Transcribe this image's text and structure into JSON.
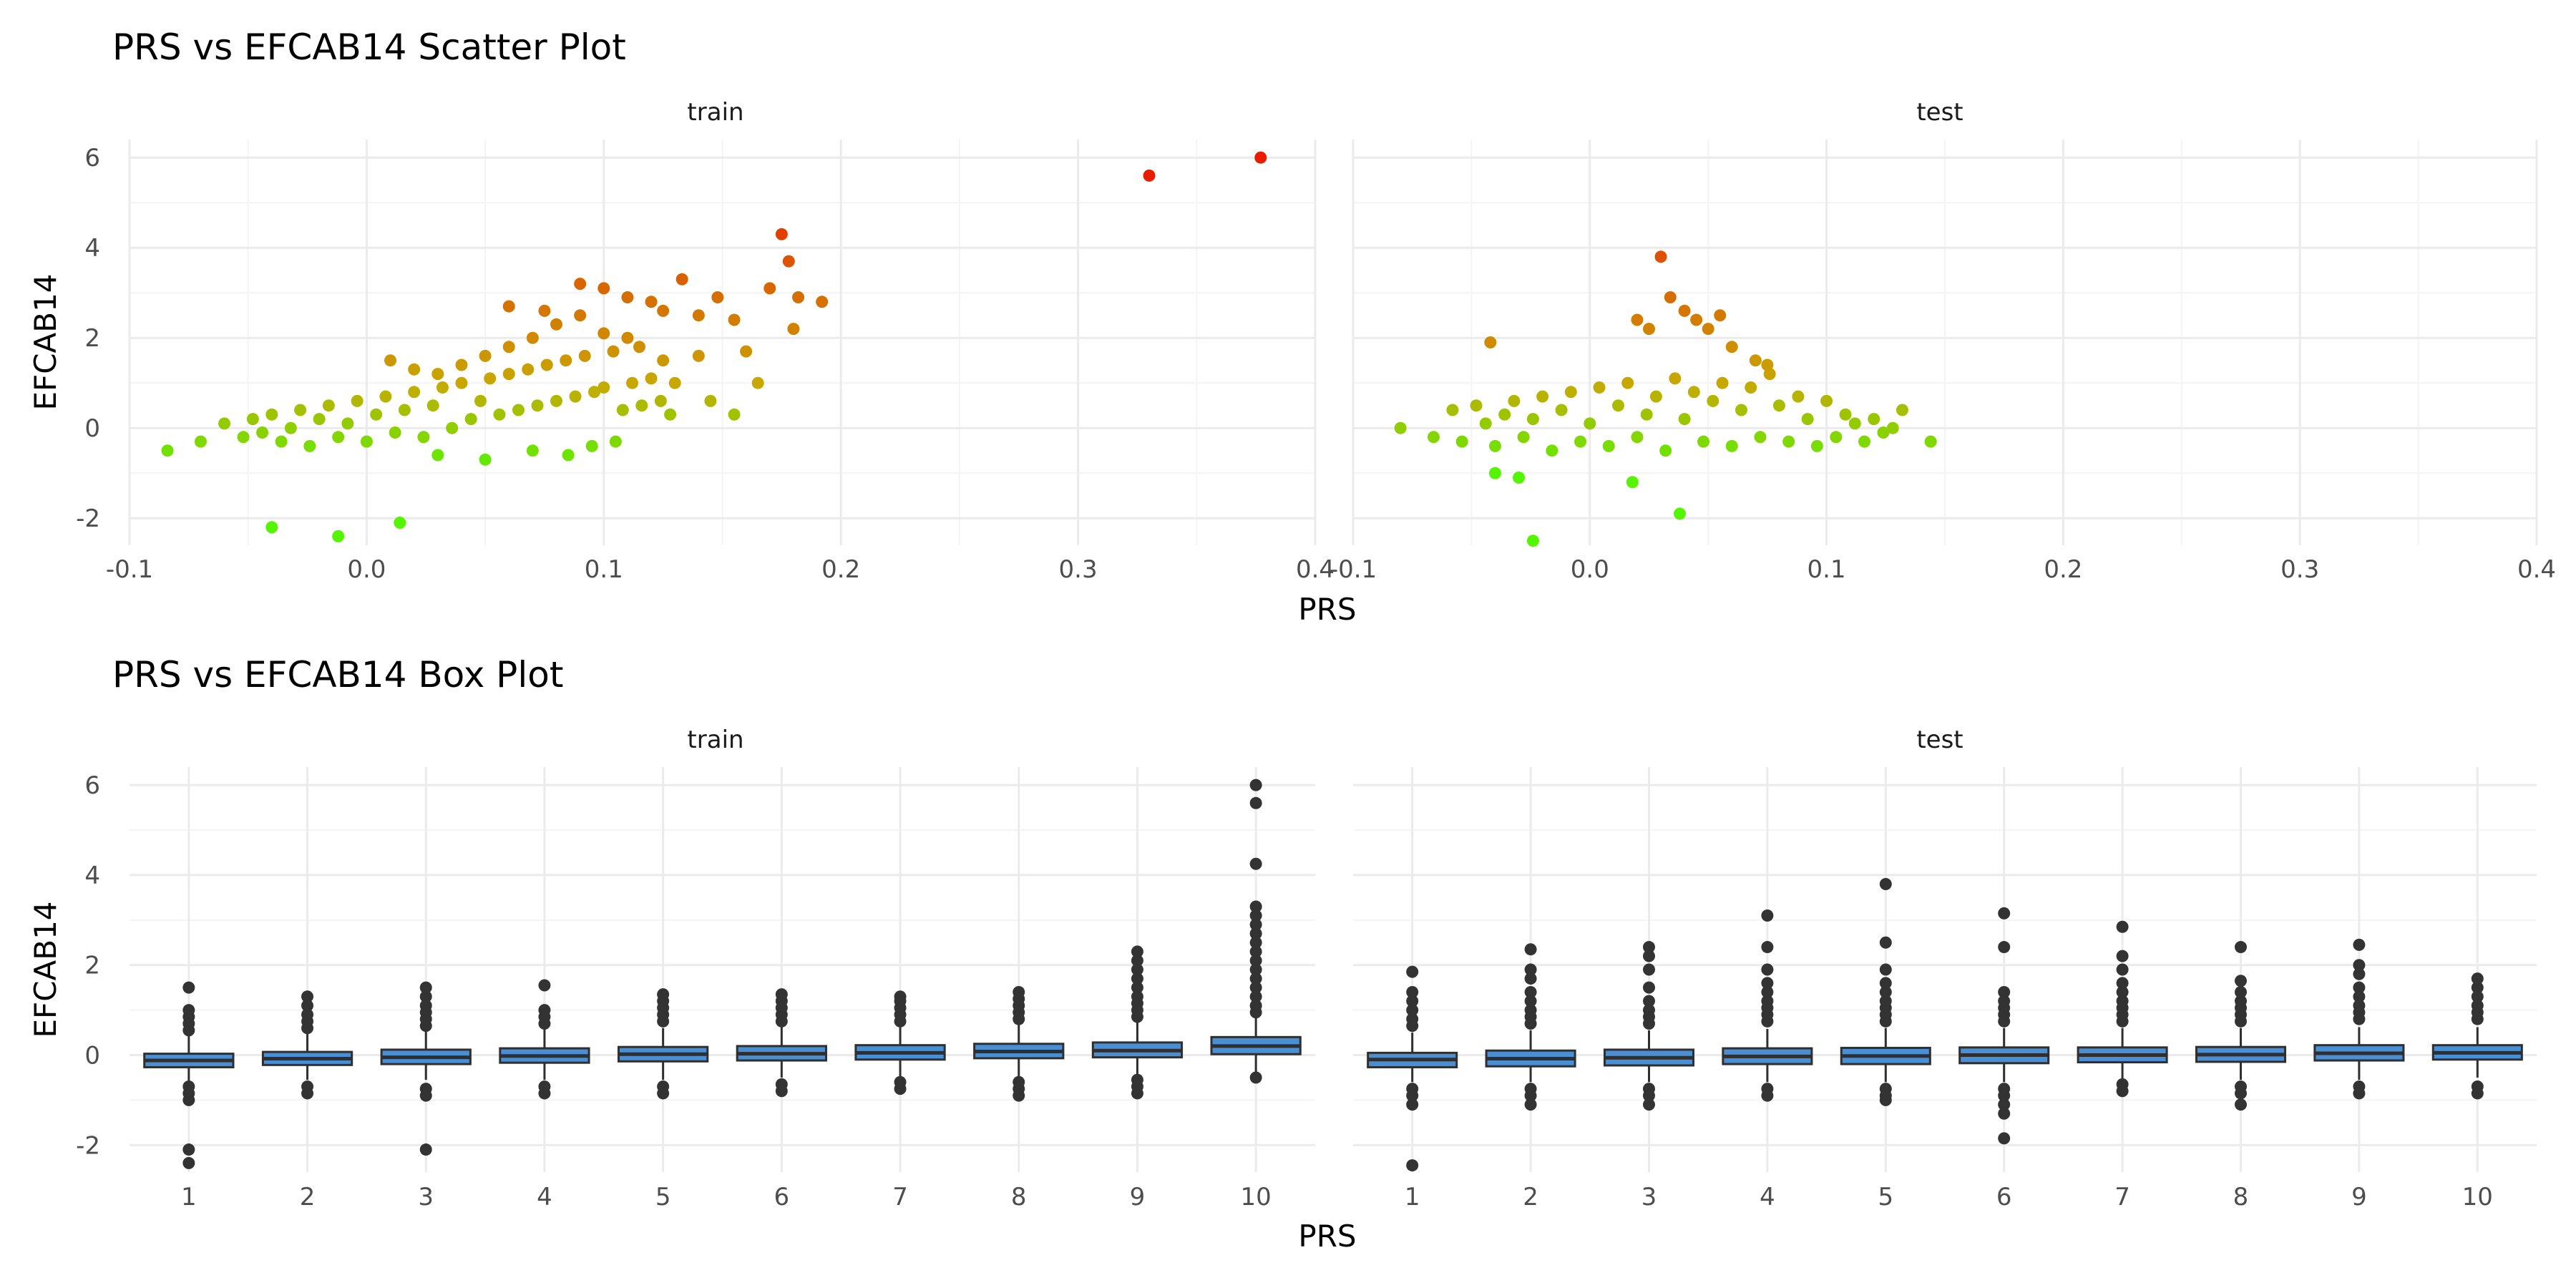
{
  "colors": {
    "background": "#ffffff",
    "grid_major": "#ebebeb",
    "grid_minor": "#f4f4f4",
    "scatter_low": "#55f400",
    "scatter_mid": "#c8a800",
    "scatter_high": "#ea1c00",
    "box_fill": "#4a8fd4",
    "box_line": "#2f2f2f",
    "outlier": "#333333"
  },
  "chart_data": [
    {
      "type": "scatter",
      "title": "PRS vs EFCAB14 Scatter Plot",
      "xlabel": "PRS",
      "ylabel": "EFCAB14",
      "xlim": [
        -0.1,
        0.4
      ],
      "ylim": [
        -2.6,
        6.4
      ],
      "x_ticks": [
        -0.1,
        0.0,
        0.1,
        0.2,
        0.3,
        0.4
      ],
      "x_tick_labels": [
        "-0.1",
        "0.0",
        "0.1",
        "0.2",
        "0.3",
        "0.4"
      ],
      "y_ticks": [
        -2,
        0,
        2,
        4,
        6
      ],
      "y_tick_labels": [
        "-2",
        "0",
        "2",
        "4",
        "6"
      ],
      "color_mapping": "points coloured by EFCAB14 value: green (low) to yellow-brown to red (high)",
      "grid": true,
      "facets": [
        {
          "label": "train",
          "x": [
            -0.084,
            -0.07,
            -0.06,
            -0.052,
            -0.048,
            -0.044,
            -0.04,
            -0.036,
            -0.032,
            -0.028,
            -0.024,
            -0.02,
            -0.016,
            -0.012,
            -0.008,
            -0.004,
            0.0,
            0.004,
            0.008,
            0.012,
            0.016,
            0.02,
            0.024,
            0.028,
            0.032,
            0.036,
            0.04,
            0.044,
            0.048,
            0.052,
            0.056,
            0.06,
            0.064,
            0.068,
            0.072,
            0.076,
            0.08,
            0.084,
            0.088,
            0.092,
            0.096,
            0.1,
            0.104,
            0.108,
            0.112,
            0.116,
            0.12,
            0.124,
            0.128,
            0.01,
            0.02,
            0.03,
            0.04,
            0.05,
            0.06,
            0.07,
            0.08,
            0.09,
            0.1,
            0.11,
            0.03,
            0.05,
            0.07,
            0.085,
            0.095,
            0.105,
            0.115,
            0.125,
            0.133,
            0.14,
            0.148,
            0.155,
            0.16,
            0.165,
            0.17,
            0.175,
            0.178,
            0.18,
            0.182,
            0.192,
            0.06,
            0.075,
            0.09,
            0.1,
            0.11,
            0.12,
            0.125,
            0.13,
            0.14,
            0.155,
            0.145,
            -0.04,
            -0.012,
            0.014,
            0.33,
            0.377
          ],
          "y": [
            -0.5,
            -0.3,
            0.1,
            -0.2,
            0.2,
            -0.1,
            0.3,
            -0.3,
            0.0,
            0.4,
            -0.4,
            0.2,
            0.5,
            -0.2,
            0.1,
            0.6,
            -0.3,
            0.3,
            0.7,
            -0.1,
            0.4,
            0.8,
            -0.2,
            0.5,
            0.9,
            0.0,
            1.0,
            0.2,
            0.6,
            1.1,
            0.3,
            1.2,
            0.4,
            1.3,
            0.5,
            1.4,
            0.6,
            1.5,
            0.7,
            1.6,
            0.8,
            0.9,
            1.7,
            0.4,
            1.0,
            0.5,
            1.1,
            0.6,
            0.3,
            1.5,
            1.3,
            1.2,
            1.4,
            1.6,
            1.8,
            2.0,
            2.3,
            2.5,
            2.1,
            2.9,
            -0.6,
            -0.7,
            -0.5,
            -0.6,
            -0.4,
            -0.3,
            1.8,
            2.6,
            3.3,
            2.5,
            2.9,
            2.4,
            1.7,
            1.0,
            3.1,
            4.3,
            3.7,
            2.2,
            2.9,
            2.8,
            2.7,
            2.6,
            3.2,
            3.1,
            2.0,
            2.8,
            1.5,
            1.0,
            1.6,
            0.3,
            0.6,
            -2.2,
            -2.4,
            -2.1,
            5.6,
            6.0
          ]
        },
        {
          "label": "test",
          "x": [
            -0.08,
            -0.066,
            -0.058,
            -0.054,
            -0.048,
            -0.044,
            -0.04,
            -0.036,
            -0.032,
            -0.028,
            -0.024,
            -0.02,
            -0.016,
            -0.012,
            -0.008,
            -0.004,
            0.0,
            0.004,
            0.008,
            0.012,
            0.016,
            0.02,
            0.024,
            0.028,
            0.032,
            0.036,
            0.04,
            0.044,
            0.048,
            0.052,
            0.056,
            0.06,
            0.064,
            0.068,
            0.072,
            0.076,
            0.08,
            0.084,
            0.088,
            0.092,
            0.096,
            0.1,
            0.104,
            0.108,
            0.112,
            0.116,
            0.12,
            0.124,
            0.128,
            0.132,
            0.144,
            -0.042,
            0.02,
            0.025,
            0.03,
            0.034,
            0.04,
            0.045,
            0.05,
            0.055,
            0.06,
            0.07,
            0.075,
            -0.04,
            -0.03,
            0.018,
            -0.024,
            0.038
          ],
          "y": [
            0.0,
            -0.2,
            0.4,
            -0.3,
            0.5,
            0.1,
            -0.4,
            0.3,
            0.6,
            -0.2,
            0.2,
            0.7,
            -0.5,
            0.4,
            0.8,
            -0.3,
            0.1,
            0.9,
            -0.4,
            0.5,
            1.0,
            -0.2,
            0.3,
            0.7,
            -0.5,
            1.1,
            0.2,
            0.8,
            -0.3,
            0.6,
            1.0,
            -0.4,
            0.4,
            0.9,
            -0.2,
            1.2,
            0.5,
            -0.3,
            0.7,
            0.2,
            -0.4,
            0.6,
            -0.2,
            0.3,
            0.1,
            -0.3,
            0.2,
            -0.1,
            0.0,
            0.4,
            -0.3,
            1.9,
            2.4,
            2.2,
            3.8,
            2.9,
            2.6,
            2.4,
            2.2,
            2.5,
            1.8,
            1.5,
            1.4,
            -1.0,
            -1.1,
            -1.2,
            -2.5,
            -1.9
          ]
        }
      ]
    },
    {
      "type": "box",
      "title": "PRS vs EFCAB14 Box Plot",
      "xlabel": "PRS",
      "ylabel": "EFCAB14",
      "categories": [
        "1",
        "2",
        "3",
        "4",
        "5",
        "6",
        "7",
        "8",
        "9",
        "10"
      ],
      "ylim": [
        -2.6,
        6.4
      ],
      "y_ticks": [
        -2,
        0,
        2,
        4,
        6
      ],
      "y_tick_labels": [
        "-2",
        "0",
        "2",
        "4",
        "6"
      ],
      "grid": true,
      "facets": [
        {
          "label": "train",
          "boxes": [
            {
              "q1": -0.27,
              "median": -0.12,
              "q3": 0.03,
              "low": -0.6,
              "high": 0.48,
              "outliers": [
                0.55,
                0.7,
                0.85,
                1.0,
                1.5,
                -0.7,
                -0.85,
                -1.0,
                -2.1,
                -2.4
              ]
            },
            {
              "q1": -0.22,
              "median": -0.08,
              "q3": 0.07,
              "low": -0.55,
              "high": 0.5,
              "outliers": [
                0.6,
                0.75,
                0.9,
                1.1,
                1.3,
                -0.7,
                -0.85
              ]
            },
            {
              "q1": -0.2,
              "median": -0.05,
              "q3": 0.12,
              "low": -0.55,
              "high": 0.55,
              "outliers": [
                0.65,
                0.8,
                0.95,
                1.1,
                1.3,
                1.5,
                -0.75,
                -0.9,
                -2.1
              ]
            },
            {
              "q1": -0.17,
              "median": -0.02,
              "q3": 0.15,
              "low": -0.55,
              "high": 0.58,
              "outliers": [
                0.7,
                0.85,
                1.0,
                1.55,
                -0.7,
                -0.85
              ]
            },
            {
              "q1": -0.14,
              "median": 0.02,
              "q3": 0.18,
              "low": -0.55,
              "high": 0.6,
              "outliers": [
                0.75,
                0.9,
                1.05,
                1.2,
                1.35,
                -0.7,
                -0.85
              ]
            },
            {
              "q1": -0.12,
              "median": 0.03,
              "q3": 0.2,
              "low": -0.5,
              "high": 0.62,
              "outliers": [
                0.75,
                0.9,
                1.05,
                1.2,
                1.35,
                -0.65,
                -0.8
              ]
            },
            {
              "q1": -0.1,
              "median": 0.05,
              "q3": 0.22,
              "low": -0.5,
              "high": 0.65,
              "outliers": [
                0.75,
                0.9,
                1.05,
                1.2,
                1.3,
                -0.6,
                -0.75
              ]
            },
            {
              "q1": -0.07,
              "median": 0.08,
              "q3": 0.25,
              "low": -0.5,
              "high": 0.68,
              "outliers": [
                0.8,
                0.95,
                1.1,
                1.25,
                1.4,
                -0.6,
                -0.75,
                -0.9
              ]
            },
            {
              "q1": -0.05,
              "median": 0.1,
              "q3": 0.28,
              "low": -0.45,
              "high": 0.75,
              "outliers": [
                0.85,
                1.0,
                1.15,
                1.3,
                1.5,
                1.7,
                1.9,
                2.1,
                2.3,
                -0.55,
                -0.7,
                -0.85
              ]
            },
            {
              "q1": 0.02,
              "median": 0.2,
              "q3": 0.4,
              "low": -0.4,
              "high": 0.85,
              "outliers": [
                0.95,
                1.1,
                1.3,
                1.5,
                1.7,
                1.9,
                2.1,
                2.3,
                2.5,
                2.7,
                2.9,
                3.1,
                3.3,
                4.25,
                5.6,
                6.0,
                -0.5
              ]
            }
          ]
        },
        {
          "label": "test",
          "boxes": [
            {
              "q1": -0.27,
              "median": -0.1,
              "q3": 0.05,
              "low": -0.6,
              "high": 0.5,
              "outliers": [
                0.65,
                0.8,
                1.0,
                1.2,
                1.4,
                1.85,
                -0.75,
                -0.9,
                -1.1,
                -2.45
              ]
            },
            {
              "q1": -0.25,
              "median": -0.08,
              "q3": 0.1,
              "low": -0.6,
              "high": 0.55,
              "outliers": [
                0.7,
                0.85,
                1.0,
                1.2,
                1.4,
                1.7,
                1.9,
                2.35,
                -0.75,
                -0.9,
                -1.1
              ]
            },
            {
              "q1": -0.23,
              "median": -0.06,
              "q3": 0.12,
              "low": -0.6,
              "high": 0.55,
              "outliers": [
                0.7,
                0.85,
                1.0,
                1.2,
                1.5,
                1.9,
                2.2,
                2.4,
                -0.75,
                -0.9,
                -1.1
              ]
            },
            {
              "q1": -0.2,
              "median": -0.03,
              "q3": 0.15,
              "low": -0.6,
              "high": 0.58,
              "outliers": [
                0.75,
                0.9,
                1.05,
                1.2,
                1.4,
                1.6,
                1.9,
                2.4,
                3.1,
                -0.75,
                -0.9
              ]
            },
            {
              "q1": -0.2,
              "median": -0.02,
              "q3": 0.16,
              "low": -0.6,
              "high": 0.6,
              "outliers": [
                0.75,
                0.9,
                1.05,
                1.2,
                1.4,
                1.6,
                1.9,
                2.5,
                3.8,
                -0.75,
                -0.9,
                -1.0
              ]
            },
            {
              "q1": -0.18,
              "median": 0.0,
              "q3": 0.17,
              "low": -0.6,
              "high": 0.6,
              "outliers": [
                0.75,
                0.9,
                1.05,
                1.2,
                1.4,
                2.4,
                3.15,
                -0.75,
                -0.9,
                -1.1,
                -1.3,
                -1.85
              ]
            },
            {
              "q1": -0.16,
              "median": 0.0,
              "q3": 0.17,
              "low": -0.55,
              "high": 0.6,
              "outliers": [
                0.75,
                0.9,
                1.05,
                1.2,
                1.4,
                1.6,
                1.9,
                2.2,
                2.85,
                -0.65,
                -0.8
              ]
            },
            {
              "q1": -0.15,
              "median": 0.01,
              "q3": 0.18,
              "low": -0.55,
              "high": 0.6,
              "outliers": [
                0.75,
                0.9,
                1.05,
                1.2,
                1.4,
                1.65,
                2.4,
                -0.7,
                -0.85,
                -1.1
              ]
            },
            {
              "q1": -0.12,
              "median": 0.04,
              "q3": 0.22,
              "low": -0.55,
              "high": 0.62,
              "outliers": [
                0.8,
                0.95,
                1.1,
                1.3,
                1.5,
                1.8,
                2.0,
                2.45,
                -0.7,
                -0.85
              ]
            },
            {
              "q1": -0.1,
              "median": 0.05,
              "q3": 0.22,
              "low": -0.5,
              "high": 0.62,
              "outliers": [
                0.8,
                0.95,
                1.1,
                1.3,
                1.5,
                1.7,
                -0.7,
                -0.85
              ]
            }
          ]
        }
      ]
    }
  ]
}
